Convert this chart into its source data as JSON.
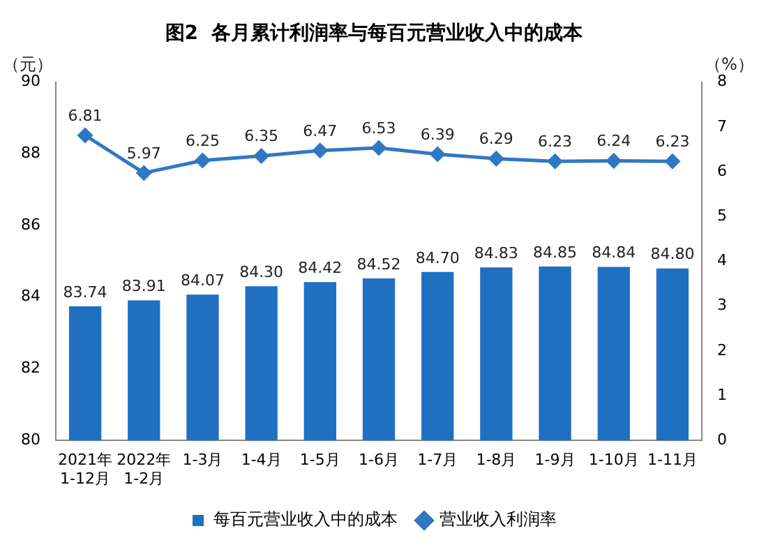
{
  "chart_data": {
    "type": "bar",
    "title": "图2  各月累计利润率与每百元营业收入中的成本",
    "categories": [
      "2021年\n1-12月",
      "2022年\n1-2月",
      "1-3月",
      "1-4月",
      "1-5月",
      "1-6月",
      "1-7月",
      "1-8月",
      "1-9月",
      "1-10月",
      "1-11月"
    ],
    "series": [
      {
        "name": "每百元营业收入中的成本",
        "color": "#1f70c1",
        "values": [
          83.74,
          83.91,
          84.07,
          84.3,
          84.42,
          84.52,
          84.7,
          84.83,
          84.85,
          84.84,
          84.8
        ],
        "value_labels": [
          "83.74",
          "83.91",
          "84.07",
          "84.30",
          "84.42",
          "84.52",
          "84.70",
          "84.83",
          "84.85",
          "84.84",
          "84.80"
        ]
      },
      {
        "name": "营业收入利润率",
        "type": "line",
        "axis": "y2",
        "color": "#2f78c4",
        "marker": "diamond",
        "values": [
          6.81,
          5.97,
          6.25,
          6.35,
          6.47,
          6.53,
          6.39,
          6.29,
          6.23,
          6.24,
          6.23
        ]
      }
    ],
    "ylabel": "（元）",
    "y2label": "（%）",
    "ylim": [
      80,
      90
    ],
    "yticks": [
      80,
      82,
      84,
      86,
      88,
      90
    ],
    "y2lim": [
      0,
      8
    ],
    "y2ticks": [
      0,
      1,
      2,
      3,
      4,
      5,
      6,
      7,
      8
    ],
    "data_labels": true,
    "grid": false,
    "legend": "bottom"
  }
}
